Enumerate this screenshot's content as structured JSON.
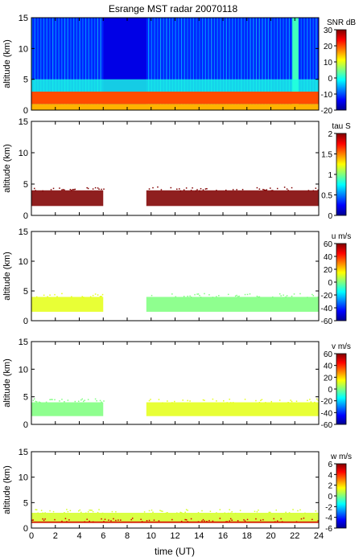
{
  "title": "Esrange MST radar 20070118",
  "xlabel": "time (UT)",
  "x_ticks": [
    "0",
    "2",
    "4",
    "6",
    "8",
    "10",
    "12",
    "14",
    "16",
    "18",
    "20",
    "22",
    "24"
  ],
  "chart_data": [
    {
      "type": "heatmap",
      "ylabel": "altitude (km)",
      "xlim": [
        0,
        24
      ],
      "ylim": [
        0,
        15
      ],
      "y_ticks": [
        "0",
        "5",
        "10",
        "15"
      ],
      "colorbar": {
        "label": "SNR dB",
        "range": [
          -20,
          30
        ],
        "ticks": [
          "30",
          "20",
          "10",
          "0",
          "-10",
          "-20"
        ]
      },
      "features": [
        {
          "kind": "data-gap",
          "x": [
            6.0,
            9.6
          ],
          "note": "uniform low SNR"
        },
        {
          "kind": "bright-column",
          "x": [
            21.8,
            22.3
          ]
        },
        {
          "kind": "strong-echo-band",
          "altitude_km": [
            1.0,
            3.0
          ],
          "snr_db": 20
        }
      ]
    },
    {
      "type": "heatmap",
      "ylabel": "altitude (km)",
      "xlim": [
        0,
        24
      ],
      "ylim": [
        0,
        15
      ],
      "y_ticks": [
        "0",
        "5",
        "10",
        "15"
      ],
      "colorbar": {
        "label": "tau S",
        "range": [
          0,
          2
        ],
        "ticks": [
          "2",
          "1.5",
          "1",
          "0.5",
          "0"
        ]
      },
      "segments": [
        {
          "x": [
            0.0,
            6.0
          ],
          "altitude_km": [
            1.5,
            4.0
          ],
          "value": 2.0
        },
        {
          "x": [
            9.6,
            24.0
          ],
          "altitude_km": [
            1.5,
            4.0
          ],
          "value": 2.0
        }
      ]
    },
    {
      "type": "heatmap",
      "ylabel": "altitude (km)",
      "xlim": [
        0,
        24
      ],
      "ylim": [
        0,
        15
      ],
      "y_ticks": [
        "0",
        "5",
        "10",
        "15"
      ],
      "colorbar": {
        "label": "u m/s",
        "range": [
          -60,
          60
        ],
        "ticks": [
          "60",
          "40",
          "20",
          "0",
          "-20",
          "-40",
          "-60"
        ]
      },
      "segments": [
        {
          "x": [
            0.0,
            6.0
          ],
          "altitude_km": [
            1.5,
            4.0
          ],
          "value": 12
        },
        {
          "x": [
            9.6,
            24.0
          ],
          "altitude_km": [
            1.5,
            4.0
          ],
          "value": 0
        }
      ]
    },
    {
      "type": "heatmap",
      "ylabel": "altitude (km)",
      "xlim": [
        0,
        24
      ],
      "ylim": [
        0,
        15
      ],
      "y_ticks": [
        "0",
        "5",
        "10",
        "15"
      ],
      "colorbar": {
        "label": "v m/s",
        "range": [
          -60,
          60
        ],
        "ticks": [
          "60",
          "40",
          "20",
          "0",
          "-20",
          "-40",
          "-60"
        ]
      },
      "segments": [
        {
          "x": [
            0.0,
            6.0
          ],
          "altitude_km": [
            1.5,
            4.0
          ],
          "value": 0
        },
        {
          "x": [
            9.6,
            24.0
          ],
          "altitude_km": [
            1.5,
            4.0
          ],
          "value": 12
        }
      ]
    },
    {
      "type": "heatmap",
      "ylabel": "altitude (km)",
      "xlim": [
        0,
        24
      ],
      "ylim": [
        0,
        15
      ],
      "y_ticks": [
        "0",
        "5",
        "10",
        "15"
      ],
      "colorbar": {
        "label": "w m/s",
        "range": [
          -6,
          6
        ],
        "ticks": [
          "6",
          "4",
          "2",
          "0",
          "-2",
          "-4",
          "-6"
        ]
      },
      "segments": [
        {
          "x": [
            0.0,
            24.0
          ],
          "altitude_km": [
            1.0,
            3.0
          ],
          "value": 1.0
        },
        {
          "x": [
            0.0,
            24.0
          ],
          "altitude_km": [
            1.0,
            1.3
          ],
          "value": 5.0
        }
      ]
    }
  ]
}
